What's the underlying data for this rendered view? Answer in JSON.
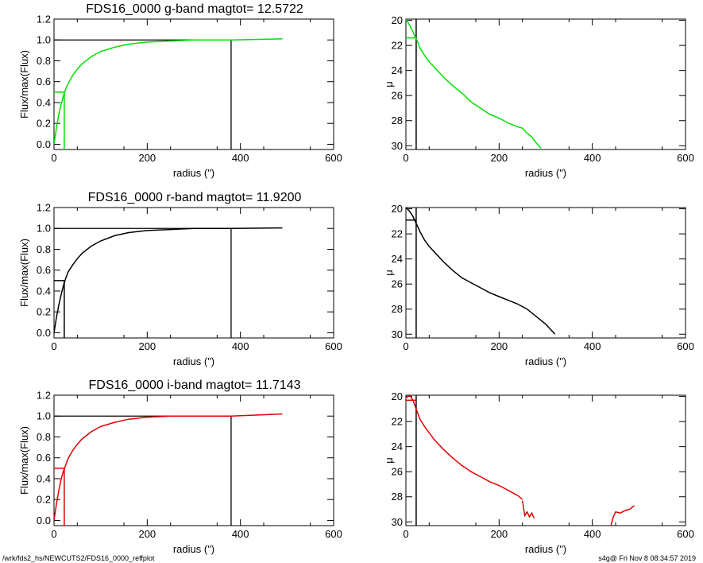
{
  "footer": {
    "left": "/wrk/fds2_hs/NEWCUTS2/FDS16_0000_reffplot",
    "right": "s4g@  Fri Nov  8 08:34:57 2019"
  },
  "chart_data": [
    {
      "type": "line",
      "title": "FDS16_0000 g-band  magtot=     12.5722",
      "xlabel": "radius (\")",
      "ylabel": "Flux/max(Flux)",
      "xlim": [
        0,
        600
      ],
      "ylim": [
        -0.05,
        1.2
      ],
      "xticks": [
        0,
        200,
        400,
        600
      ],
      "yticks": [
        "0.0",
        "0.2",
        "0.4",
        "0.6",
        "0.8",
        "1.0",
        "1.2"
      ],
      "color": "#00e000",
      "series": [
        {
          "x": [
            0,
            5,
            10,
            15,
            20,
            25,
            30,
            40,
            50,
            60,
            80,
            100,
            130,
            160,
            200,
            250,
            300,
            380,
            490
          ],
          "y": [
            0,
            0.15,
            0.28,
            0.38,
            0.46,
            0.53,
            0.58,
            0.66,
            0.72,
            0.77,
            0.84,
            0.89,
            0.93,
            0.96,
            0.98,
            0.99,
            1.0,
            1.0,
            1.01
          ]
        }
      ],
      "half_light": {
        "r": 22,
        "level": 0.5
      },
      "total": {
        "r": 380,
        "level": 1.0
      }
    },
    {
      "type": "line",
      "xlabel": "radius (\")",
      "ylabel": "μ",
      "xlim": [
        0,
        600
      ],
      "ylim": [
        30.3,
        19.9
      ],
      "xticks": [
        0,
        200,
        400,
        600
      ],
      "yticks": [
        "20",
        "22",
        "24",
        "26",
        "28",
        "30"
      ],
      "color": "#00e000",
      "series": [
        [
          {
            "x": [
              0,
              8,
              15,
              20,
              25,
              30,
              40,
              50,
              60,
              80,
              100,
              120,
              140,
              160,
              180,
              200,
              220,
              240,
              250,
              260,
              270,
              280,
              290
            ],
            "y": [
              19.9,
              20.4,
              20.9,
              21.3,
              21.7,
              22.2,
              22.8,
              23.3,
              23.7,
              24.5,
              25.2,
              25.8,
              26.5,
              27.0,
              27.5,
              27.8,
              28.2,
              28.5,
              28.6,
              29.0,
              29.3,
              29.8,
              30.2
            ]
          }
        ]
      ],
      "reff_line": {
        "r": 22,
        "level": 21.4
      }
    },
    {
      "type": "line",
      "title": "FDS16_0000 r-band  magtot=     11.9200",
      "xlabel": "radius (\")",
      "ylabel": "Flux/max(Flux)",
      "xlim": [
        0,
        600
      ],
      "ylim": [
        -0.05,
        1.2
      ],
      "xticks": [
        0,
        200,
        400,
        600
      ],
      "yticks": [
        "0.0",
        "0.2",
        "0.4",
        "0.6",
        "0.8",
        "1.0",
        "1.2"
      ],
      "color": "#000000",
      "series": [
        {
          "x": [
            0,
            5,
            10,
            15,
            20,
            25,
            30,
            40,
            50,
            60,
            80,
            100,
            130,
            160,
            200,
            250,
            300,
            380,
            490
          ],
          "y": [
            0,
            0.14,
            0.26,
            0.36,
            0.45,
            0.52,
            0.58,
            0.65,
            0.71,
            0.76,
            0.83,
            0.88,
            0.93,
            0.96,
            0.98,
            0.99,
            1.0,
            1.0,
            1.005
          ]
        }
      ],
      "half_light": {
        "r": 22,
        "level": 0.5
      },
      "total": {
        "r": 380,
        "level": 1.0
      }
    },
    {
      "type": "line",
      "xlabel": "radius (\")",
      "ylabel": "μ",
      "xlim": [
        0,
        600
      ],
      "ylim": [
        30.3,
        19.9
      ],
      "xticks": [
        0,
        200,
        400,
        600
      ],
      "yticks": [
        "20",
        "22",
        "24",
        "26",
        "28",
        "30"
      ],
      "color": "#000000",
      "series": [
        [
          {
            "x": [
              0,
              8,
              15,
              20,
              25,
              30,
              40,
              50,
              60,
              80,
              100,
              120,
              140,
              160,
              180,
              200,
              220,
              240,
              260,
              280,
              300,
              310,
              320
            ],
            "y": [
              19.9,
              20.2,
              20.6,
              21.0,
              21.4,
              21.8,
              22.5,
              23.0,
              23.4,
              24.2,
              24.9,
              25.5,
              25.9,
              26.3,
              26.7,
              27.0,
              27.3,
              27.6,
              28.0,
              28.6,
              29.2,
              29.6,
              30.0
            ]
          }
        ]
      ],
      "reff_line": {
        "r": 22,
        "level": 20.9
      }
    },
    {
      "type": "line",
      "title": "FDS16_0000 i-band  magtot=     11.7143",
      "xlabel": "radius (\")",
      "ylabel": "Flux/max(Flux)",
      "xlim": [
        0,
        600
      ],
      "ylim": [
        -0.05,
        1.2
      ],
      "xticks": [
        0,
        200,
        400,
        600
      ],
      "yticks": [
        "0.0",
        "0.2",
        "0.4",
        "0.6",
        "0.8",
        "1.0",
        "1.2"
      ],
      "color": "#e00000",
      "series": [
        {
          "x": [
            0,
            5,
            10,
            15,
            20,
            25,
            30,
            40,
            50,
            60,
            80,
            100,
            130,
            160,
            200,
            250,
            300,
            380,
            490
          ],
          "y": [
            0,
            0.15,
            0.28,
            0.39,
            0.47,
            0.53,
            0.59,
            0.67,
            0.73,
            0.78,
            0.85,
            0.9,
            0.94,
            0.97,
            0.99,
            1.0,
            1.0,
            1.0,
            1.02
          ]
        }
      ],
      "half_light": {
        "r": 22,
        "level": 0.5
      },
      "total": {
        "r": 380,
        "level": 1.0
      }
    },
    {
      "type": "line",
      "xlabel": "radius (\")",
      "ylabel": "μ",
      "xlim": [
        0,
        600
      ],
      "ylim": [
        30.3,
        19.9
      ],
      "xticks": [
        0,
        200,
        400,
        600
      ],
      "yticks": [
        "20",
        "22",
        "24",
        "26",
        "28",
        "30"
      ],
      "color": "#e00000",
      "series": [
        [
          {
            "x": [
              0,
              8,
              15,
              20,
              25,
              30,
              40,
              50,
              60,
              80,
              100,
              120,
              140,
              160,
              180,
              200,
              220,
              240,
              250
            ],
            "y": [
              20.1,
              19.9,
              20.3,
              20.8,
              21.3,
              21.8,
              22.4,
              22.9,
              23.4,
              24.2,
              24.9,
              25.5,
              26.0,
              26.4,
              26.8,
              27.1,
              27.5,
              27.9,
              28.2
            ]
          },
          {
            "x": [
              250,
              255,
              260,
              265,
              270,
              275
            ],
            "y": [
              28.3,
              29.5,
              29.2,
              29.6,
              29.3,
              29.7
            ]
          },
          {
            "x": [
              440,
              445,
              450,
              460,
              470,
              480,
              490
            ],
            "y": [
              30.3,
              29.6,
              29.2,
              29.3,
              29.1,
              29.0,
              28.7
            ]
          }
        ]
      ],
      "reff_line": {
        "r": 22,
        "level": 20.3
      }
    }
  ]
}
